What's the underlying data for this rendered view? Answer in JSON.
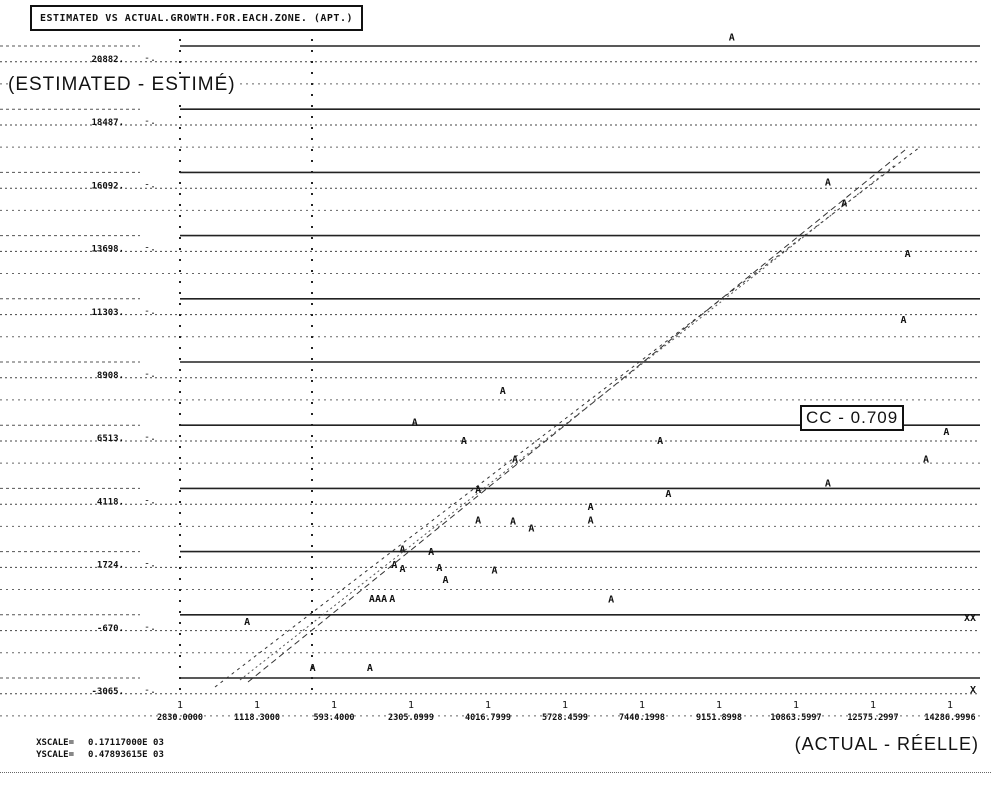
{
  "chart_data": {
    "type": "scatter",
    "title": "ESTIMATED VS ACTUAL.GROWTH.FOR.EACH.ZONE. (APT.)",
    "ylabel": "(ESTIMATED - ESTIMÉ)",
    "xlabel": "(ACTUAL - RÉELLE)",
    "correlation_label": "CC - 0.709",
    "x_ticks": [
      "2830.0000",
      "1118.3000",
      "593.4000",
      "2305.0999",
      "4016.7999",
      "5728.4599",
      "7440.1998",
      "9151.8998",
      "10863.5997",
      "12575.2997",
      "14286.9996"
    ],
    "y_ticks": [
      "20882.",
      "18487.",
      "16092.",
      "13698.",
      "11303.",
      "8908.",
      "6513.",
      "4118.",
      "1724.",
      "-670.",
      "-3065."
    ],
    "xscale": "0.17117000E 03",
    "yscale": "0.47893615E 03",
    "marker": "A",
    "xlim": [
      -4542,
      14287
    ],
    "ylim": [
      -3065,
      20882
    ],
    "points": [
      [
        8950,
        21700
      ],
      [
        11300,
        16200
      ],
      [
        11700,
        15400
      ],
      [
        13250,
        13500
      ],
      [
        13150,
        11000
      ],
      [
        3350,
        8300
      ],
      [
        1200,
        7100
      ],
      [
        2400,
        6400
      ],
      [
        3650,
        5700
      ],
      [
        7200,
        6400
      ],
      [
        14200,
        6750
      ],
      [
        13700,
        5700
      ],
      [
        11300,
        4800
      ],
      [
        7400,
        4400
      ],
      [
        2750,
        4550
      ],
      [
        2750,
        3400
      ],
      [
        3600,
        3350
      ],
      [
        4050,
        3100
      ],
      [
        5500,
        3900
      ],
      [
        5500,
        3400
      ],
      [
        900,
        2300
      ],
      [
        1600,
        2200
      ],
      [
        700,
        1700
      ],
      [
        1800,
        1600
      ],
      [
        900,
        1550
      ],
      [
        3150,
        1500
      ],
      [
        1950,
        1150
      ],
      [
        6000,
        400
      ],
      [
        150,
        430
      ],
      [
        300,
        430
      ],
      [
        450,
        430
      ],
      [
        650,
        430
      ],
      [
        -2900,
        -450
      ],
      [
        -1300,
        -2200
      ],
      [
        100,
        -2200
      ]
    ],
    "edge_markers": [
      "XX",
      "X"
    ],
    "grid": true
  }
}
